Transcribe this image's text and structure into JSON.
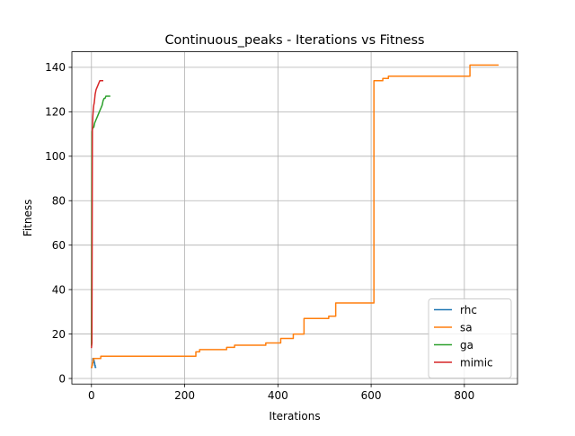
{
  "chart_data": {
    "type": "line",
    "title": "Continuous_peaks - Iterations vs Fitness",
    "xlabel": "Iterations",
    "ylabel": "Fitness",
    "xlim": [
      -42,
      914
    ],
    "ylim": [
      -2.5,
      147
    ],
    "xticks": [
      0,
      200,
      400,
      600,
      800
    ],
    "yticks": [
      0,
      20,
      40,
      60,
      80,
      100,
      120,
      140
    ],
    "grid": true,
    "legend_position": "lower right",
    "series": [
      {
        "name": "rhc",
        "color": "#1f77b4",
        "x": [
          0,
          1,
          1,
          2,
          2,
          3,
          3,
          4,
          4,
          5,
          5,
          6,
          6,
          7,
          7,
          8,
          8,
          9
        ],
        "y": [
          5,
          5,
          6,
          6,
          7,
          7,
          9,
          9,
          9,
          9,
          8,
          8,
          7,
          7,
          6,
          6,
          5,
          5
        ]
      },
      {
        "name": "sa",
        "color": "#ff7f0e",
        "step": true,
        "x": [
          0,
          1,
          2,
          3,
          4,
          5,
          10,
          15,
          20,
          40,
          100,
          200,
          224,
          226,
          232,
          290,
          307,
          374,
          406,
          433,
          456,
          509,
          524,
          604,
          606,
          625,
          637,
          700,
          810,
          812,
          872
        ],
        "y": [
          5,
          6,
          7,
          8,
          9,
          9,
          9,
          9,
          10,
          10,
          10,
          10,
          12,
          12,
          13,
          14,
          15,
          16,
          18,
          20,
          27,
          28,
          34,
          34,
          134,
          135,
          136,
          136,
          136,
          141,
          141
        ]
      },
      {
        "name": "ga",
        "color": "#2ca02c",
        "x": [
          0,
          1,
          3,
          5,
          7,
          9,
          11,
          13,
          15,
          17,
          19,
          21,
          23,
          25,
          27,
          29,
          31,
          33,
          35,
          37,
          39
        ],
        "y": [
          15,
          111,
          113,
          113,
          115,
          116,
          117,
          118,
          119,
          120,
          121,
          122,
          123,
          125,
          126,
          126,
          127,
          127,
          127,
          127,
          127
        ]
      },
      {
        "name": "mimic",
        "color": "#d62728",
        "x": [
          0,
          1,
          2,
          3,
          4,
          5,
          6,
          7,
          8,
          9,
          10,
          12,
          14,
          16,
          18,
          20,
          22,
          24
        ],
        "y": [
          14,
          16,
          112,
          118,
          121,
          123,
          124,
          126,
          128,
          129,
          130,
          131,
          132,
          133,
          134,
          134,
          134,
          134
        ]
      }
    ]
  }
}
